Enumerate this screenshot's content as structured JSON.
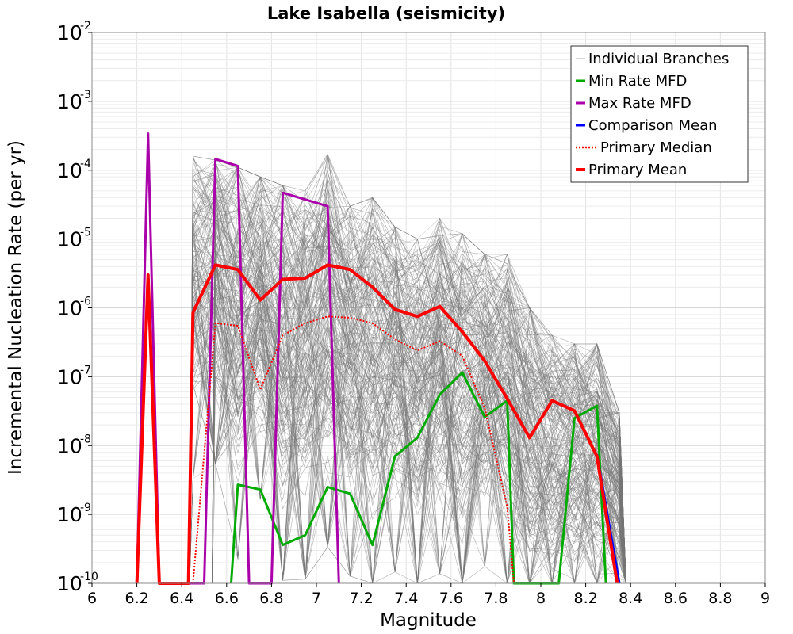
{
  "chart_data": {
    "type": "line",
    "title": "Lake Isabella (seismicity)",
    "xlabel": "Magnitude",
    "ylabel": "Incremental Nucleation Rate (per yr)",
    "xlim": [
      6,
      9
    ],
    "ylim": [
      1e-10,
      0.01
    ],
    "yscale": "log",
    "x_ticks": [
      "6",
      "6.2",
      "6.4",
      "6.6",
      "6.8",
      "7",
      "7.2",
      "7.4",
      "7.6",
      "7.8",
      "8",
      "8.2",
      "8.4",
      "8.6",
      "8.8",
      "9"
    ],
    "y_ticks": [
      {
        "base": "10",
        "exp": "-10"
      },
      {
        "base": "10",
        "exp": "-9"
      },
      {
        "base": "10",
        "exp": "-8"
      },
      {
        "base": "10",
        "exp": "-7"
      },
      {
        "base": "10",
        "exp": "-6"
      },
      {
        "base": "10",
        "exp": "-5"
      },
      {
        "base": "10",
        "exp": "-4"
      },
      {
        "base": "10",
        "exp": "-3"
      },
      {
        "base": "10",
        "exp": "-2"
      }
    ],
    "legend_position": "top-right",
    "series": [
      {
        "name": "Individual Branches",
        "color": "#777777",
        "style": "thin",
        "envelope_upper": [
          [
            6.45,
            0.00016
          ],
          [
            6.55,
            0.00014
          ],
          [
            6.65,
            0.00011
          ],
          [
            6.75,
            8e-05
          ],
          [
            6.85,
            6e-05
          ],
          [
            6.95,
            5e-05
          ],
          [
            7.05,
            0.00017
          ],
          [
            7.15,
            3e-05
          ],
          [
            7.25,
            4e-05
          ],
          [
            7.35,
            1.5e-05
          ],
          [
            7.45,
            1e-05
          ],
          [
            7.55,
            2e-05
          ],
          [
            7.65,
            1.2e-05
          ],
          [
            7.75,
            6e-06
          ],
          [
            7.85,
            6e-06
          ],
          [
            7.95,
            1e-06
          ],
          [
            8.05,
            4e-07
          ],
          [
            8.15,
            3e-07
          ],
          [
            8.25,
            3e-07
          ],
          [
            8.35,
            3e-08
          ]
        ],
        "envelope_lower": [
          [
            6.45,
            2e-08
          ],
          [
            6.55,
            3e-08
          ],
          [
            6.65,
            2e-09
          ],
          [
            6.75,
            1e-08
          ],
          [
            6.85,
            1e-09
          ],
          [
            6.95,
            1e-09
          ],
          [
            7.05,
            3e-09
          ],
          [
            7.15,
            1e-09
          ],
          [
            7.25,
            3e-10
          ],
          [
            7.35,
            1e-09
          ],
          [
            7.45,
            5e-10
          ],
          [
            7.55,
            1e-09
          ],
          [
            7.65,
            2e-10
          ],
          [
            7.75,
            1e-09
          ],
          [
            7.85,
            3e-10
          ],
          [
            7.95,
            1e-10
          ],
          [
            8.05,
            1e-10
          ],
          [
            8.15,
            1e-10
          ],
          [
            8.25,
            1e-10
          ],
          [
            8.35,
            1e-10
          ]
        ]
      },
      {
        "name": "Min Rate MFD",
        "color": "#00aa00",
        "points": [
          [
            6.62,
            1e-10
          ],
          [
            6.65,
            2.7e-09
          ],
          [
            6.75,
            2.3e-09
          ],
          [
            6.85,
            3.6e-10
          ],
          [
            6.95,
            5e-10
          ],
          [
            7.05,
            2.5e-09
          ],
          [
            7.15,
            2e-09
          ],
          [
            7.25,
            3.6e-10
          ],
          [
            7.35,
            7e-09
          ],
          [
            7.45,
            1.3e-08
          ],
          [
            7.55,
            5.5e-08
          ],
          [
            7.65,
            1.15e-07
          ],
          [
            7.75,
            2.6e-08
          ],
          [
            7.85,
            4.5e-08
          ],
          [
            7.88,
            1e-10
          ],
          [
            8.08,
            1e-10
          ],
          [
            8.15,
            2.5e-08
          ],
          [
            8.25,
            3.8e-08
          ],
          [
            8.29,
            1e-10
          ]
        ]
      },
      {
        "name": "Max Rate MFD",
        "color": "#aa00aa",
        "points": [
          [
            6.2,
            1e-10
          ],
          [
            6.25,
            0.00034
          ],
          [
            6.3,
            1e-10
          ],
          [
            6.5,
            1e-10
          ],
          [
            6.55,
            0.000145
          ],
          [
            6.65,
            0.000115
          ],
          [
            6.7,
            1e-10
          ],
          [
            6.8,
            1e-10
          ],
          [
            6.85,
            4.7e-05
          ],
          [
            7.05,
            3e-05
          ],
          [
            7.1,
            1e-10
          ]
        ]
      },
      {
        "name": "Comparison Mean",
        "color": "#0000ff",
        "points": [
          [
            8.25,
            7.5e-09
          ],
          [
            8.35,
            1e-10
          ]
        ]
      },
      {
        "name": "Primary Median",
        "color": "#ff0000",
        "style": "dotted",
        "points": [
          [
            6.45,
            1e-10
          ],
          [
            6.55,
            6e-07
          ],
          [
            6.65,
            5.5e-07
          ],
          [
            6.75,
            6.5e-08
          ],
          [
            6.85,
            4e-07
          ],
          [
            6.95,
            6e-07
          ],
          [
            7.05,
            7.5e-07
          ],
          [
            7.15,
            7.2e-07
          ],
          [
            7.25,
            6e-07
          ],
          [
            7.35,
            3.5e-07
          ],
          [
            7.45,
            2.4e-07
          ],
          [
            7.55,
            3.3e-07
          ],
          [
            7.65,
            2e-07
          ],
          [
            7.75,
            3.5e-08
          ],
          [
            7.85,
            1.3e-09
          ],
          [
            7.88,
            1e-10
          ]
        ]
      },
      {
        "name": "Primary Mean",
        "color": "#ff0000",
        "points": [
          [
            6.2,
            1e-10
          ],
          [
            6.25,
            3e-06
          ],
          [
            6.3,
            1e-10
          ],
          [
            6.43,
            1e-10
          ],
          [
            6.45,
            8.5e-07
          ],
          [
            6.55,
            4.2e-06
          ],
          [
            6.65,
            3.6e-06
          ],
          [
            6.75,
            1.3e-06
          ],
          [
            6.85,
            2.6e-06
          ],
          [
            6.95,
            2.7e-06
          ],
          [
            7.05,
            4.2e-06
          ],
          [
            7.15,
            3.6e-06
          ],
          [
            7.25,
            2e-06
          ],
          [
            7.35,
            9.5e-07
          ],
          [
            7.45,
            7.5e-07
          ],
          [
            7.55,
            1.05e-06
          ],
          [
            7.65,
            4.5e-07
          ],
          [
            7.75,
            1.7e-07
          ],
          [
            7.85,
            4.8e-08
          ],
          [
            7.95,
            1.3e-08
          ],
          [
            8.05,
            4.5e-08
          ],
          [
            8.15,
            3.2e-08
          ],
          [
            8.25,
            7e-09
          ],
          [
            8.34,
            1e-10
          ]
        ]
      }
    ]
  }
}
